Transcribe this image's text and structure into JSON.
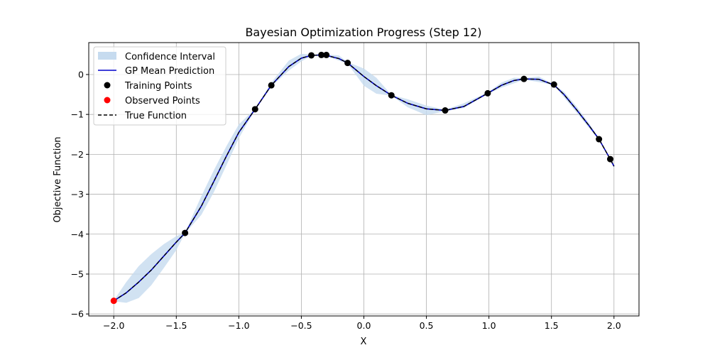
{
  "chart_data": {
    "type": "line",
    "title": "Bayesian Optimization Progress (Step 12)",
    "xlabel": "X",
    "ylabel": "Objective Function",
    "xlim": [
      -2.2,
      2.2
    ],
    "ylim": [
      -6.05,
      0.8
    ],
    "xticks": [
      -2.0,
      -1.5,
      -1.0,
      -0.5,
      0.0,
      0.5,
      1.0,
      1.5,
      2.0
    ],
    "xtick_labels": [
      "−2.0",
      "−1.5",
      "−1.0",
      "−0.5",
      "0.0",
      "0.5",
      "1.0",
      "1.5",
      "2.0"
    ],
    "yticks": [
      0,
      -1,
      -2,
      -3,
      -4,
      -5,
      -6
    ],
    "ytick_labels": [
      "0",
      "−1",
      "−2",
      "−3",
      "−4",
      "−5",
      "−6"
    ],
    "grid": true,
    "legend_position": "top-left",
    "legend": [
      {
        "label": "Confidence Interval",
        "kind": "patch"
      },
      {
        "label": "GP Mean Prediction",
        "kind": "line"
      },
      {
        "label": "Training Points",
        "kind": "marker"
      },
      {
        "label": "Observed Points",
        "kind": "marker"
      },
      {
        "label": "True Function",
        "kind": "dashed-line"
      }
    ],
    "colors": {
      "confidence": "#c6dbef",
      "gp_mean": "#0000cc",
      "training": "#000000",
      "observed": "#ff0000",
      "true_function": "#000000",
      "grid": "#b0b0b0"
    },
    "curve": {
      "x": [
        -2.0,
        -1.9,
        -1.8,
        -1.7,
        -1.6,
        -1.5,
        -1.43,
        -1.3,
        -1.2,
        -1.1,
        -1.0,
        -0.87,
        -0.74,
        -0.6,
        -0.5,
        -0.42,
        -0.34,
        -0.3,
        -0.2,
        -0.13,
        0.0,
        0.1,
        0.22,
        0.35,
        0.5,
        0.65,
        0.8,
        0.99,
        1.1,
        1.2,
        1.28,
        1.4,
        1.52,
        1.6,
        1.7,
        1.8,
        1.88,
        1.97,
        2.0
      ],
      "y": [
        -5.67,
        -5.47,
        -5.2,
        -4.9,
        -4.55,
        -4.2,
        -3.97,
        -3.3,
        -2.68,
        -2.05,
        -1.45,
        -0.87,
        -0.27,
        0.2,
        0.41,
        0.48,
        0.49,
        0.48,
        0.4,
        0.29,
        -0.05,
        -0.28,
        -0.52,
        -0.72,
        -0.86,
        -0.9,
        -0.8,
        -0.47,
        -0.27,
        -0.15,
        -0.11,
        -0.12,
        -0.26,
        -0.5,
        -0.88,
        -1.28,
        -1.62,
        -2.12,
        -2.3
      ]
    },
    "confidence_interval": {
      "x": [
        -2.0,
        -1.9,
        -1.8,
        -1.7,
        -1.6,
        -1.5,
        -1.43,
        -1.3,
        -1.2,
        -1.1,
        -1.0,
        -0.87,
        -0.74,
        -0.6,
        -0.5,
        -0.42,
        -0.34,
        -0.3,
        -0.2,
        -0.13,
        0.0,
        0.1,
        0.22,
        0.35,
        0.5,
        0.65,
        0.8,
        0.99,
        1.1,
        1.2,
        1.28,
        1.4,
        1.52,
        1.6,
        1.7,
        1.8,
        1.88,
        1.97,
        2.0
      ],
      "lower": [
        -5.68,
        -5.72,
        -5.6,
        -5.28,
        -4.85,
        -4.4,
        -3.98,
        -3.52,
        -2.95,
        -2.28,
        -1.6,
        -0.88,
        -0.3,
        0.1,
        0.33,
        0.46,
        0.47,
        0.46,
        0.35,
        0.27,
        -0.28,
        -0.48,
        -0.53,
        -0.82,
        -1.02,
        -0.92,
        -0.84,
        -0.49,
        -0.33,
        -0.22,
        -0.13,
        -0.19,
        -0.27,
        -0.57,
        -0.95,
        -1.34,
        -1.64,
        -2.14,
        -2.34
      ],
      "upper": [
        -5.66,
        -5.2,
        -4.8,
        -4.5,
        -4.25,
        -4.05,
        -3.96,
        -3.05,
        -2.4,
        -1.8,
        -1.25,
        -0.86,
        -0.2,
        0.35,
        0.52,
        0.5,
        0.51,
        0.5,
        0.48,
        0.31,
        0.15,
        -0.08,
        -0.51,
        -0.62,
        -0.78,
        -0.88,
        -0.72,
        -0.45,
        -0.2,
        -0.08,
        -0.09,
        -0.05,
        -0.25,
        -0.43,
        -0.8,
        -1.22,
        -1.6,
        -2.1,
        -2.26
      ]
    },
    "training_points": {
      "x": [
        -1.43,
        -0.87,
        -0.74,
        -0.42,
        -0.34,
        -0.3,
        -0.13,
        0.22,
        0.65,
        0.99,
        1.28,
        1.52,
        1.88,
        1.97
      ],
      "y": [
        -3.97,
        -0.87,
        -0.27,
        0.48,
        0.49,
        0.49,
        0.29,
        -0.52,
        -0.9,
        -0.47,
        -0.11,
        -0.25,
        -1.62,
        -2.12
      ]
    },
    "observed_points": {
      "x": [
        -2.0
      ],
      "y": [
        -5.67
      ]
    }
  }
}
